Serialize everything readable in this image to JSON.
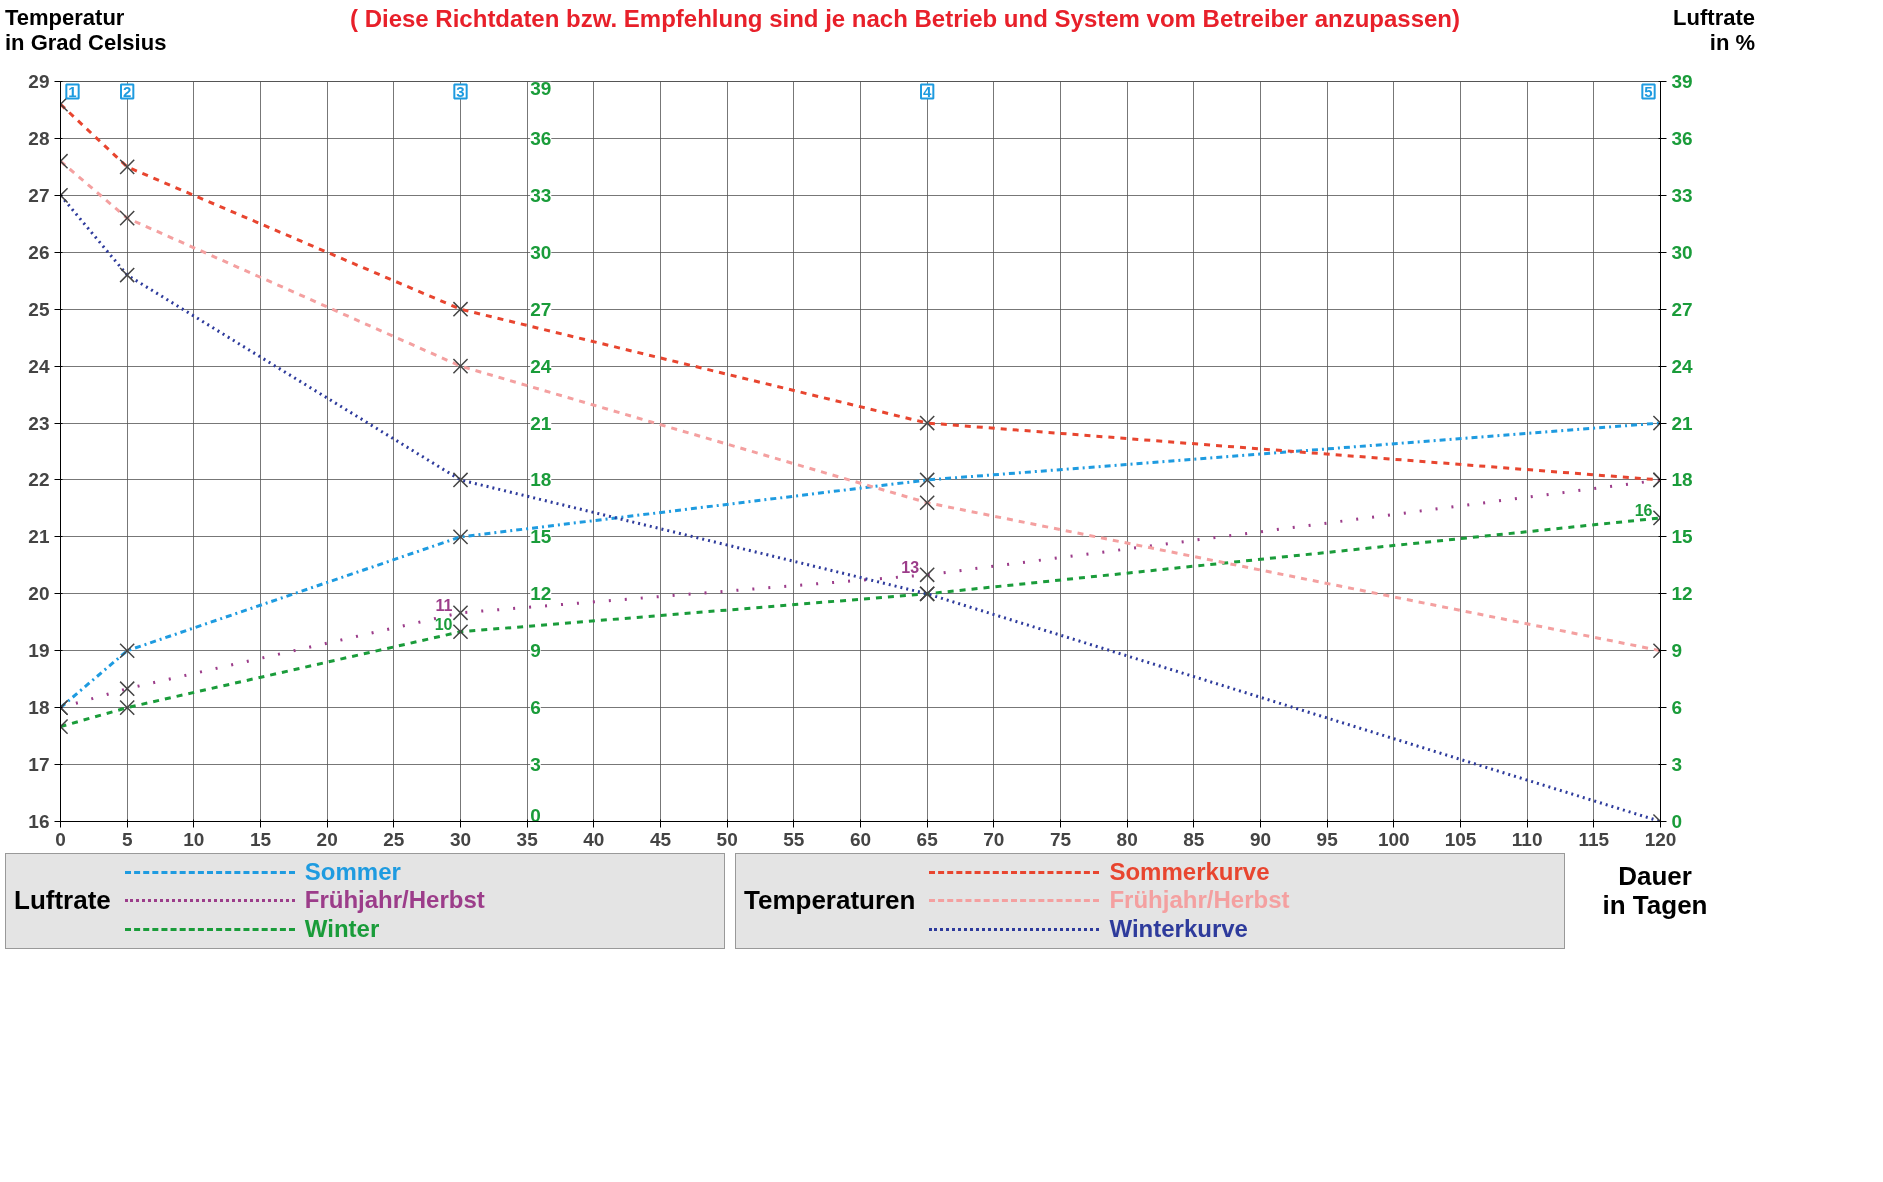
{
  "chart_data": {
    "type": "line",
    "title": "( Diese Richtdaten bzw. Empfehlung sind je nach Betrieb und System vom Betreiber anzupassen)",
    "ylabel": "Temperatur\nin Grad Celsius",
    "y2label": "Luftrate\nin %",
    "xlabel": "Dauer\nin Tagen",
    "x": [
      0,
      5,
      30,
      65,
      120
    ],
    "xlim": [
      0,
      120
    ],
    "xticks": [
      0,
      5,
      10,
      15,
      20,
      25,
      30,
      35,
      40,
      45,
      50,
      55,
      60,
      65,
      70,
      75,
      80,
      85,
      90,
      95,
      100,
      105,
      110,
      115,
      120
    ],
    "ylim": [
      16,
      29
    ],
    "yticks": [
      16,
      17,
      18,
      19,
      20,
      21,
      22,
      23,
      24,
      25,
      26,
      27,
      28,
      29
    ],
    "y2lim": [
      0,
      39
    ],
    "y2ticks": [
      0,
      3,
      6,
      9,
      12,
      15,
      18,
      21,
      24,
      27,
      30,
      33,
      36,
      39
    ],
    "y3lim": [
      0,
      39
    ],
    "y3ticks": [
      0,
      3,
      6,
      9,
      12,
      15,
      18,
      21,
      24,
      27,
      30,
      33,
      36,
      39
    ],
    "grid": true,
    "legend": "bottom",
    "marker": "cross",
    "series": [
      {
        "name": "Sommer",
        "color": "#1e9be0",
        "axis": "y2",
        "line_style": "dashdot",
        "values": [
          6,
          9,
          15,
          18,
          21
        ]
      },
      {
        "name": "Frühjahr/Herbst",
        "color": "#9c3d8a",
        "axis": "y2",
        "line_style": "dotted",
        "values": [
          6,
          7,
          11,
          13,
          18
        ],
        "value_labels": [
          null,
          null,
          "11",
          "13",
          null
        ]
      },
      {
        "name": "Winter",
        "color": "#1a9c3a",
        "axis": "y2",
        "line_style": "dashed",
        "values": [
          5,
          6,
          10,
          12,
          16
        ],
        "value_labels": [
          null,
          null,
          "10",
          null,
          "16"
        ]
      },
      {
        "name": "Sommerkurve",
        "color": "#e8452f",
        "line_style": "dashed",
        "values": [
          28.6,
          27.5,
          25,
          23,
          22
        ]
      },
      {
        "name": "Frühjahr/Herbst",
        "color": "#f4a0a0",
        "line_style": "dashed",
        "values": [
          27.6,
          26.6,
          24,
          21.6,
          19
        ]
      },
      {
        "name": "Winterkurve",
        "color": "#2e3b9c",
        "line_style": "dotted",
        "values": [
          27,
          25.6,
          22,
          20,
          16
        ]
      }
    ],
    "annotations": [
      "Luftrate",
      "Temperaturen",
      "1",
      "2",
      "3",
      "4",
      "5"
    ]
  }
}
